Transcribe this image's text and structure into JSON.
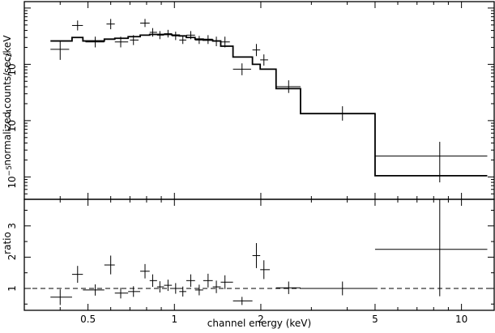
{
  "chart_data": [
    {
      "panel": "spectrum",
      "type": "scatter",
      "xlabel": "",
      "ylabel": "normalized counts/sec/keV",
      "x_scale": "log",
      "y_scale": "log",
      "xlim": [
        0.3,
        13
      ],
      "ylim": [
        4e-06,
        0.013
      ],
      "y_ticks": [
        {
          "value": 1e-05,
          "mantissa": "10",
          "exp": "−5"
        },
        {
          "value": 0.0001,
          "mantissa": "10",
          "exp": "−4"
        },
        {
          "value": 0.001,
          "mantissa": "10",
          "exp": "−3"
        }
      ],
      "series": [
        {
          "kind": "data_with_errors",
          "points": [
            {
              "x": 0.4,
              "y": 0.00185,
              "xerr": [
                0.37,
                0.43
              ],
              "yerr": [
                0.0012,
                0.0026
              ]
            },
            {
              "x": 0.46,
              "y": 0.0049,
              "xerr": [
                0.44,
                0.48
              ],
              "yerr": [
                0.004,
                0.006
              ]
            },
            {
              "x": 0.53,
              "y": 0.0025,
              "xerr": [
                0.49,
                0.57
              ],
              "yerr": [
                0.002,
                0.0031
              ]
            },
            {
              "x": 0.6,
              "y": 0.0052,
              "xerr": [
                0.58,
                0.62
              ],
              "yerr": [
                0.0042,
                0.0064
              ]
            },
            {
              "x": 0.65,
              "y": 0.0025,
              "xerr": [
                0.62,
                0.69
              ],
              "yerr": [
                0.002,
                0.0031
              ]
            },
            {
              "x": 0.72,
              "y": 0.0027,
              "xerr": [
                0.7,
                0.75
              ],
              "yerr": [
                0.0022,
                0.0033
              ]
            },
            {
              "x": 0.79,
              "y": 0.0054,
              "xerr": [
                0.76,
                0.82
              ],
              "yerr": [
                0.0046,
                0.0064
              ]
            },
            {
              "x": 0.84,
              "y": 0.0037,
              "xerr": [
                0.82,
                0.87
              ],
              "yerr": [
                0.0031,
                0.0044
              ]
            },
            {
              "x": 0.89,
              "y": 0.0033,
              "xerr": [
                0.87,
                0.92
              ],
              "yerr": [
                0.0028,
                0.0039
              ]
            },
            {
              "x": 0.95,
              "y": 0.0035,
              "xerr": [
                0.92,
                0.98
              ],
              "yerr": [
                0.003,
                0.0041
              ]
            },
            {
              "x": 1.01,
              "y": 0.0032,
              "xerr": [
                0.98,
                1.04
              ],
              "yerr": [
                0.0027,
                0.0038
              ]
            },
            {
              "x": 1.07,
              "y": 0.0027,
              "xerr": [
                1.04,
                1.1
              ],
              "yerr": [
                0.0023,
                0.0032
              ]
            },
            {
              "x": 1.14,
              "y": 0.0033,
              "xerr": [
                1.1,
                1.18
              ],
              "yerr": [
                0.0028,
                0.0039
              ]
            },
            {
              "x": 1.22,
              "y": 0.0027,
              "xerr": [
                1.18,
                1.26
              ],
              "yerr": [
                0.0023,
                0.0032
              ]
            },
            {
              "x": 1.31,
              "y": 0.0028,
              "xerr": [
                1.26,
                1.36
              ],
              "yerr": [
                0.0023,
                0.0033
              ]
            },
            {
              "x": 1.4,
              "y": 0.0026,
              "xerr": [
                1.36,
                1.45
              ],
              "yerr": [
                0.0021,
                0.0031
              ]
            },
            {
              "x": 1.5,
              "y": 0.0025,
              "xerr": [
                1.45,
                1.56
              ],
              "yerr": [
                0.002,
                0.0031
              ]
            },
            {
              "x": 1.72,
              "y": 0.00082,
              "xerr": [
                1.6,
                1.85
              ],
              "yerr": [
                0.00064,
                0.00104
              ]
            },
            {
              "x": 1.93,
              "y": 0.0018,
              "xerr": [
                1.87,
                1.99
              ],
              "yerr": [
                0.0014,
                0.0023
              ]
            },
            {
              "x": 2.05,
              "y": 0.0012,
              "xerr": [
                1.99,
                2.12
              ],
              "yerr": [
                0.00095,
                0.0015
              ]
            },
            {
              "x": 2.5,
              "y": 0.0004,
              "xerr": [
                2.26,
                2.75
              ],
              "yerr": [
                0.00031,
                0.00052
              ]
            },
            {
              "x": 3.85,
              "y": 0.000135,
              "xerr": [
                2.75,
                5.0
              ],
              "yerr": [
                0.0001,
                0.00018
              ]
            },
            {
              "x": 8.4,
              "y": 2.35e-05,
              "xerr": [
                5.0,
                12.3
              ],
              "yerr": [
                8e-06,
                4.2e-05
              ]
            }
          ]
        },
        {
          "kind": "model_step",
          "bins": [
            {
              "x0": 0.37,
              "x1": 0.44,
              "y": 0.0026
            },
            {
              "x0": 0.44,
              "x1": 0.48,
              "y": 0.003
            },
            {
              "x0": 0.48,
              "x1": 0.57,
              "y": 0.0026
            },
            {
              "x0": 0.57,
              "x1": 0.62,
              "y": 0.0028
            },
            {
              "x0": 0.62,
              "x1": 0.69,
              "y": 0.0029
            },
            {
              "x0": 0.69,
              "x1": 0.76,
              "y": 0.0031
            },
            {
              "x0": 0.76,
              "x1": 0.82,
              "y": 0.0033
            },
            {
              "x0": 0.82,
              "x1": 0.87,
              "y": 0.0034
            },
            {
              "x0": 0.87,
              "x1": 0.92,
              "y": 0.0034
            },
            {
              "x0": 0.92,
              "x1": 0.98,
              "y": 0.0034
            },
            {
              "x0": 0.98,
              "x1": 1.04,
              "y": 0.0033
            },
            {
              "x0": 1.04,
              "x1": 1.1,
              "y": 0.0032
            },
            {
              "x0": 1.1,
              "x1": 1.18,
              "y": 0.003
            },
            {
              "x0": 1.18,
              "x1": 1.26,
              "y": 0.0028
            },
            {
              "x0": 1.26,
              "x1": 1.36,
              "y": 0.0027
            },
            {
              "x0": 1.36,
              "x1": 1.45,
              "y": 0.0026
            },
            {
              "x0": 1.45,
              "x1": 1.6,
              "y": 0.0021
            },
            {
              "x0": 1.6,
              "x1": 1.87,
              "y": 0.00135
            },
            {
              "x0": 1.87,
              "x1": 1.99,
              "y": 0.001
            },
            {
              "x0": 1.99,
              "x1": 2.26,
              "y": 0.00082
            },
            {
              "x0": 2.26,
              "x1": 2.75,
              "y": 0.00037
            },
            {
              "x0": 2.75,
              "x1": 5.0,
              "y": 0.000133
            },
            {
              "x0": 5.0,
              "x1": 12.3,
              "y": 1.05e-05
            }
          ]
        }
      ]
    },
    {
      "panel": "ratio",
      "type": "scatter",
      "xlabel": "channel energy (keV)",
      "ylabel": "ratio",
      "x_scale": "log",
      "y_scale": "linear",
      "xlim": [
        0.3,
        13
      ],
      "ylim": [
        0.3,
        3.85
      ],
      "x_ticks": [
        {
          "value": 0.5,
          "label": "0.5"
        },
        {
          "value": 1,
          "label": "1"
        },
        {
          "value": 2,
          "label": "2"
        },
        {
          "value": 5,
          "label": "5"
        },
        {
          "value": 10,
          "label": "10"
        }
      ],
      "y_ticks": [
        {
          "value": 1,
          "label": "1"
        },
        {
          "value": 2,
          "label": "2"
        },
        {
          "value": 3,
          "label": "3"
        }
      ],
      "reference_line": {
        "y": 1,
        "style": "dashed"
      },
      "points": [
        {
          "x": 0.4,
          "y": 0.72,
          "xerr": [
            0.37,
            0.44
          ],
          "yerr": [
            0.47,
            0.97
          ]
        },
        {
          "x": 0.46,
          "y": 1.45,
          "xerr": [
            0.44,
            0.48
          ],
          "yerr": [
            1.18,
            1.72
          ]
        },
        {
          "x": 0.53,
          "y": 0.95,
          "xerr": [
            0.48,
            0.57
          ],
          "yerr": [
            0.77,
            1.13
          ]
        },
        {
          "x": 0.6,
          "y": 1.75,
          "xerr": [
            0.57,
            0.62
          ],
          "yerr": [
            1.45,
            2.05
          ]
        },
        {
          "x": 0.65,
          "y": 0.85,
          "xerr": [
            0.62,
            0.69
          ],
          "yerr": [
            0.68,
            1.02
          ]
        },
        {
          "x": 0.72,
          "y": 0.9,
          "xerr": [
            0.69,
            0.76
          ],
          "yerr": [
            0.73,
            1.07
          ]
        },
        {
          "x": 0.79,
          "y": 1.55,
          "xerr": [
            0.76,
            0.82
          ],
          "yerr": [
            1.32,
            1.78
          ]
        },
        {
          "x": 0.84,
          "y": 1.25,
          "xerr": [
            0.82,
            0.87
          ],
          "yerr": [
            1.05,
            1.45
          ]
        },
        {
          "x": 0.89,
          "y": 1.05,
          "xerr": [
            0.87,
            0.92
          ],
          "yerr": [
            0.87,
            1.23
          ]
        },
        {
          "x": 0.95,
          "y": 1.1,
          "xerr": [
            0.92,
            0.98
          ],
          "yerr": [
            0.92,
            1.28
          ]
        },
        {
          "x": 1.01,
          "y": 1.0,
          "xerr": [
            0.98,
            1.04
          ],
          "yerr": [
            0.83,
            1.17
          ]
        },
        {
          "x": 1.07,
          "y": 0.9,
          "xerr": [
            1.04,
            1.1
          ],
          "yerr": [
            0.74,
            1.06
          ]
        },
        {
          "x": 1.14,
          "y": 1.25,
          "xerr": [
            1.1,
            1.18
          ],
          "yerr": [
            1.05,
            1.45
          ]
        },
        {
          "x": 1.22,
          "y": 0.95,
          "xerr": [
            1.18,
            1.26
          ],
          "yerr": [
            0.78,
            1.12
          ]
        },
        {
          "x": 1.31,
          "y": 1.25,
          "xerr": [
            1.26,
            1.36
          ],
          "yerr": [
            1.03,
            1.47
          ]
        },
        {
          "x": 1.4,
          "y": 1.05,
          "xerr": [
            1.36,
            1.45
          ],
          "yerr": [
            0.85,
            1.25
          ]
        },
        {
          "x": 1.5,
          "y": 1.2,
          "xerr": [
            1.45,
            1.6
          ],
          "yerr": [
            0.98,
            1.42
          ]
        },
        {
          "x": 1.72,
          "y": 0.6,
          "xerr": [
            1.6,
            1.87
          ],
          "yerr": [
            0.47,
            0.73
          ]
        },
        {
          "x": 1.93,
          "y": 2.05,
          "xerr": [
            1.87,
            1.99
          ],
          "yerr": [
            1.65,
            2.45
          ]
        },
        {
          "x": 2.05,
          "y": 1.6,
          "xerr": [
            1.99,
            2.15
          ],
          "yerr": [
            1.3,
            1.9
          ]
        },
        {
          "x": 2.5,
          "y": 1.02,
          "xerr": [
            2.26,
            2.75
          ],
          "yerr": [
            0.82,
            1.22
          ]
        },
        {
          "x": 3.85,
          "y": 1.0,
          "xerr": [
            2.75,
            5.0
          ],
          "yerr": [
            0.78,
            1.22
          ]
        },
        {
          "x": 8.4,
          "y": 2.25,
          "xerr": [
            5.0,
            12.3
          ],
          "yerr": [
            0.75,
            3.85
          ]
        }
      ]
    }
  ]
}
